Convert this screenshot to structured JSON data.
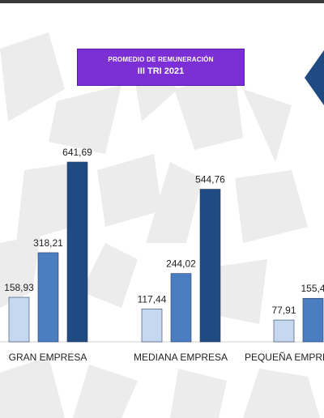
{
  "title": {
    "line1": "PROMEDIO DE REMUNERACIÓN",
    "line2": "III TRI 2021"
  },
  "colors": {
    "series": [
      "#c5d8f0",
      "#4a7ec0",
      "#1f4a82"
    ],
    "title_bg": "#7b2fd4",
    "arrow": "#1f4a82"
  },
  "chart_data": {
    "type": "bar",
    "title": "PROMEDIO DE REMUNERACIÓN III TRI 2021",
    "categories": [
      "GRAN EMPRESA",
      "MEDIANA EMPRESA",
      "PEQUEÑA EMPRESA"
    ],
    "series": [
      {
        "values": [
          158.93,
          117.44,
          77.91
        ],
        "labels": [
          "158,93",
          "117,44",
          "77,91"
        ]
      },
      {
        "values": [
          318.21,
          244.02,
          155.4
        ],
        "labels": [
          "318,21",
          "244,02",
          "155,4"
        ]
      },
      {
        "values": [
          641.69,
          544.76,
          null
        ],
        "labels": [
          "641,69",
          "544,76",
          ""
        ]
      }
    ],
    "ylim": [
      0,
      680
    ],
    "grid": false,
    "legend": "none"
  }
}
